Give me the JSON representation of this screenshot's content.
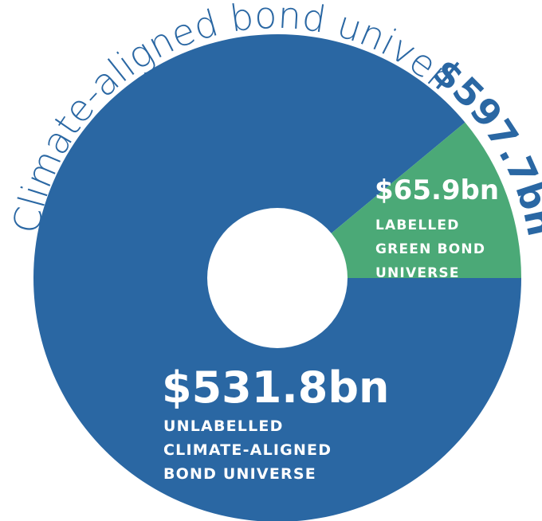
{
  "chart_data": {
    "type": "pie",
    "title": "Climate-aligned bond universe",
    "total_label": "$597.7bn",
    "total_value": 597.7,
    "slices": [
      {
        "name": "Unlabelled climate-aligned bond universe",
        "value": 531.8,
        "value_label": "$531.8bn",
        "label_lines": [
          "UNLABELLED",
          "CLIMATE-ALIGNED",
          "BOND UNIVERSE"
        ],
        "color": "#2a67a3"
      },
      {
        "name": "Labelled green bond universe",
        "value": 65.9,
        "value_label": "$65.9bn",
        "label_lines": [
          "LABELLED",
          "GREEN BOND",
          "UNIVERSE"
        ],
        "color": "#4ba977"
      }
    ],
    "colors": {
      "title": "#2a67a3",
      "total": "#2a67a3",
      "hole": "#ffffff",
      "background": "#ffffff"
    }
  }
}
